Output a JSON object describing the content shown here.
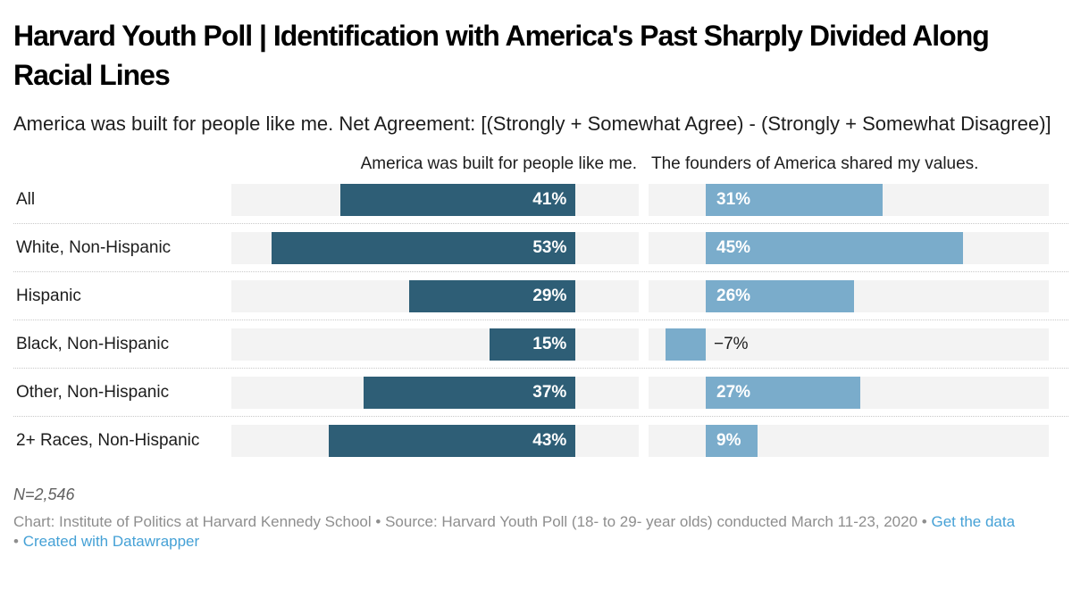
{
  "header": {
    "title": "Harvard Youth Poll | Identification with America's Past Sharply Divided Along Racial Lines",
    "subtitle": "America was built for people like me. Net Agreement: [(Strongly + Somewhat Agree) - (Strongly + Somewhat Disagree)]"
  },
  "chart_data": {
    "type": "bar",
    "layout": "split-bars, horizontal, two value columns per category row",
    "title": "Harvard Youth Poll | Identification with America's Past Sharply Divided Along Racial Lines",
    "categories": [
      "All",
      "White, Non-Hispanic",
      "Hispanic",
      "Black, Non-Hispanic",
      "Other, Non-Hispanic",
      "2+ Races, Non-Hispanic"
    ],
    "series": [
      {
        "name": "America was built for people like me.",
        "values": [
          41,
          53,
          29,
          15,
          37,
          43
        ],
        "color": "#2e5e76",
        "axis": {
          "min": -11,
          "max": 60,
          "direction": "rtl"
        },
        "value_label_position": "inside-right"
      },
      {
        "name": "The founders of America shared my values.",
        "values": [
          31,
          45,
          26,
          -7,
          27,
          9
        ],
        "color": "#7aaccb",
        "axis": {
          "min": -10,
          "max": 60,
          "direction": "ltr"
        },
        "value_label_position": "inside-left, dark outside label for negative values"
      }
    ],
    "value_suffix": "%",
    "displayed_value_labels": [
      [
        "41%",
        "53%",
        "29%",
        "15%",
        "37%",
        "43%"
      ],
      [
        "31%",
        "45%",
        "26%",
        "−7%",
        "27%",
        "9%"
      ]
    ],
    "track_color": "#f3f3f3",
    "grid": "dotted horizontal separators between rows",
    "legend": "none (series names shown as column headers above tracks)"
  },
  "footer": {
    "note": "N=2,546",
    "credit": "Chart: Institute of Politics at Harvard Kennedy School",
    "source": "Source: Harvard Youth Poll (18- to 29- year olds) conducted March 11-23, 2020",
    "separator": "•",
    "links": [
      {
        "label": "Get the data"
      },
      {
        "label": "Created with Datawrapper"
      }
    ],
    "link_color": "#45a1d6"
  }
}
